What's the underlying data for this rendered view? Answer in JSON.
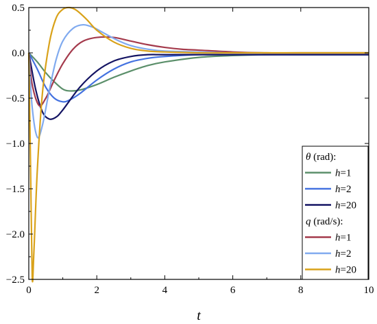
{
  "chart_data": {
    "type": "line",
    "title": "",
    "xlabel": "t",
    "ylabel": "",
    "xlim": [
      0,
      10
    ],
    "ylim": [
      -2.5,
      0.5
    ],
    "x_ticks": [
      0,
      2,
      4,
      6,
      8,
      10
    ],
    "y_ticks": [
      0.5,
      0.0,
      -0.5,
      -1.0,
      -1.5,
      -2.0,
      -2.5
    ],
    "x_tick_labels": [
      "0",
      "2",
      "4",
      "6",
      "8",
      "10"
    ],
    "y_tick_labels": [
      "0.5",
      "0.0",
      "−0.5",
      "−1.0",
      "−1.5",
      "−2.0",
      "−2.5"
    ],
    "grid": false,
    "legend_position": "lower-right",
    "legend_groups": [
      {
        "title_symbol": "θ",
        "title_unit": " (rad):"
      },
      {
        "title_symbol": "q",
        "title_unit": " (rad/s):"
      }
    ],
    "series": [
      {
        "group": 0,
        "var": "h",
        "label": "=1",
        "color": "#5b8f6a",
        "x": [
          0,
          0.25,
          0.5,
          0.75,
          1.0,
          1.2,
          1.5,
          2.0,
          2.5,
          3.0,
          3.5,
          4.0,
          5.0,
          6.0,
          7.0,
          8.0,
          10.0
        ],
        "y": [
          0,
          -0.1,
          -0.22,
          -0.32,
          -0.4,
          -0.42,
          -0.41,
          -0.35,
          -0.27,
          -0.2,
          -0.14,
          -0.1,
          -0.05,
          -0.03,
          -0.02,
          -0.02,
          -0.02
        ]
      },
      {
        "group": 0,
        "var": "h",
        "label": "=2",
        "color": "#4472e0",
        "x": [
          0,
          0.25,
          0.5,
          0.75,
          1.0,
          1.2,
          1.5,
          2.0,
          2.5,
          3.0,
          3.5,
          4.0,
          5.0,
          6.0,
          8.0,
          10.0
        ],
        "y": [
          0,
          -0.18,
          -0.38,
          -0.5,
          -0.54,
          -0.52,
          -0.45,
          -0.3,
          -0.18,
          -0.1,
          -0.06,
          -0.04,
          -0.02,
          -0.02,
          -0.02,
          -0.02
        ]
      },
      {
        "group": 0,
        "var": "h",
        "label": "=20",
        "color": "#141463",
        "x": [
          0,
          0.2,
          0.4,
          0.6,
          0.8,
          1.0,
          1.5,
          2.0,
          2.5,
          3.0,
          3.5,
          4.0,
          6.0,
          8.0,
          10.0
        ],
        "y": [
          0,
          -0.4,
          -0.65,
          -0.73,
          -0.71,
          -0.63,
          -0.38,
          -0.2,
          -0.09,
          -0.04,
          -0.02,
          -0.02,
          -0.02,
          -0.02,
          -0.02
        ]
      },
      {
        "group": 1,
        "var": "h",
        "label": "=1",
        "color": "#a43a4c",
        "x": [
          0,
          0.1,
          0.3,
          0.5,
          0.75,
          1.0,
          1.3,
          1.6,
          2.0,
          2.5,
          3.0,
          3.5,
          4.0,
          4.5,
          5.0,
          6.0,
          7.0,
          8.0,
          10.0
        ],
        "y": [
          0,
          -0.35,
          -0.58,
          -0.5,
          -0.3,
          -0.12,
          0.04,
          0.13,
          0.17,
          0.17,
          0.13,
          0.09,
          0.06,
          0.04,
          0.03,
          0.01,
          0.0,
          0.0,
          0.0
        ]
      },
      {
        "group": 1,
        "var": "h",
        "label": "=2",
        "color": "#80aaef",
        "x": [
          0,
          0.1,
          0.25,
          0.4,
          0.6,
          0.8,
          1.0,
          1.3,
          1.6,
          1.9,
          2.2,
          2.6,
          3.0,
          3.5,
          4.0,
          5.0,
          6.0,
          8.0,
          10.0
        ],
        "y": [
          0,
          -0.6,
          -0.93,
          -0.8,
          -0.42,
          -0.08,
          0.13,
          0.27,
          0.31,
          0.28,
          0.22,
          0.14,
          0.08,
          0.04,
          0.02,
          0.01,
          0.0,
          0.0,
          0.0
        ]
      },
      {
        "group": 1,
        "var": "h",
        "label": "=20",
        "color": "#d9a21a",
        "x": [
          0,
          0.05,
          0.1,
          0.15,
          0.25,
          0.4,
          0.6,
          0.8,
          1.0,
          1.2,
          1.4,
          1.7,
          2.0,
          2.5,
          3.0,
          3.5,
          4.0,
          5.0,
          6.0,
          8.0,
          10.0
        ],
        "y": [
          0,
          -1.2,
          -2.47,
          -2.2,
          -1.3,
          -0.45,
          0.1,
          0.38,
          0.48,
          0.5,
          0.47,
          0.37,
          0.25,
          0.12,
          0.05,
          0.02,
          0.01,
          0.0,
          0.0,
          0.0,
          0.0
        ]
      }
    ]
  }
}
